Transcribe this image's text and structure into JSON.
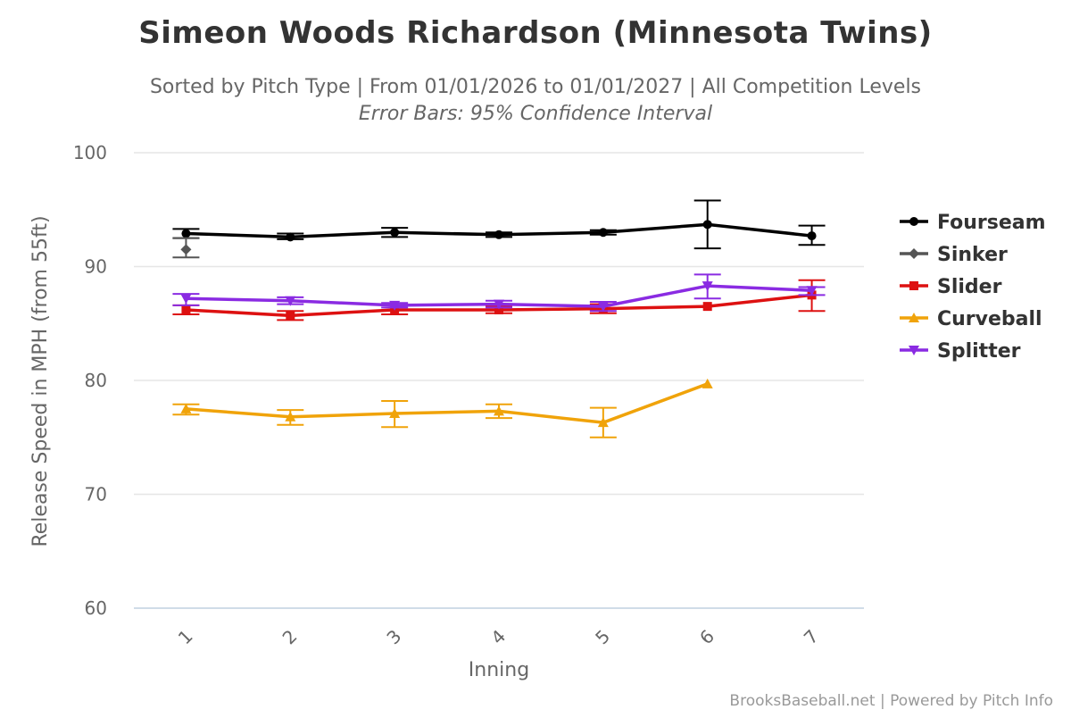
{
  "chart_data": {
    "type": "line",
    "title": "Simeon Woods Richardson (Minnesota Twins)",
    "subtitle": "Sorted by Pitch Type | From 01/01/2026 to 01/01/2027 | All Competition Levels",
    "subtitle2": "Error Bars: 95% Confidence Interval",
    "xlabel": "Inning",
    "ylabel": "Release Speed in MPH (from 55ft)",
    "categories": [
      "1",
      "2",
      "3",
      "4",
      "5",
      "6",
      "7"
    ],
    "ylim": [
      60,
      100
    ],
    "yticks": [
      100,
      90,
      80,
      70,
      60
    ],
    "grid": true,
    "legend_position": "right",
    "credits": "BrooksBaseball.net | Powered by Pitch Info",
    "series": [
      {
        "name": "Fourseam",
        "color": "#000000",
        "marker": "circle",
        "values": [
          92.9,
          92.6,
          93.0,
          92.8,
          93.0,
          93.7,
          92.7
        ],
        "err_low": [
          92.5,
          92.4,
          92.6,
          92.6,
          92.8,
          91.6,
          91.9
        ],
        "err_high": [
          93.3,
          92.9,
          93.4,
          93.0,
          93.2,
          95.8,
          93.6
        ]
      },
      {
        "name": "Sinker",
        "color": "#555555",
        "marker": "diamond",
        "values": [
          91.5,
          null,
          null,
          null,
          null,
          null,
          null
        ],
        "err_low": [
          90.8,
          null,
          null,
          null,
          null,
          null,
          null
        ],
        "err_high": [
          92.5,
          null,
          null,
          null,
          null,
          null,
          null
        ]
      },
      {
        "name": "Slider",
        "color": "#dd1111",
        "marker": "square",
        "values": [
          86.2,
          85.7,
          86.2,
          86.2,
          86.3,
          86.5,
          87.5
        ],
        "err_low": [
          85.8,
          85.3,
          85.8,
          85.9,
          85.9,
          null,
          86.1
        ],
        "err_high": [
          86.6,
          86.1,
          86.6,
          86.5,
          86.7,
          null,
          88.8
        ]
      },
      {
        "name": "Curveball",
        "color": "#f0a30a",
        "marker": "triangle",
        "values": [
          77.5,
          76.8,
          77.1,
          77.3,
          76.3,
          79.7,
          null
        ],
        "err_low": [
          77.0,
          76.1,
          75.9,
          76.7,
          75.0,
          null,
          null
        ],
        "err_high": [
          77.9,
          77.4,
          78.2,
          77.9,
          77.6,
          null,
          null
        ]
      },
      {
        "name": "Splitter",
        "color": "#8a2be2",
        "marker": "triangle-down",
        "values": [
          87.2,
          87.0,
          86.6,
          86.7,
          86.5,
          88.3,
          87.9
        ],
        "err_low": [
          86.6,
          86.7,
          86.4,
          86.4,
          86.1,
          87.2,
          87.5
        ],
        "err_high": [
          87.6,
          87.3,
          86.8,
          87.0,
          86.9,
          89.3,
          88.2
        ]
      }
    ]
  }
}
